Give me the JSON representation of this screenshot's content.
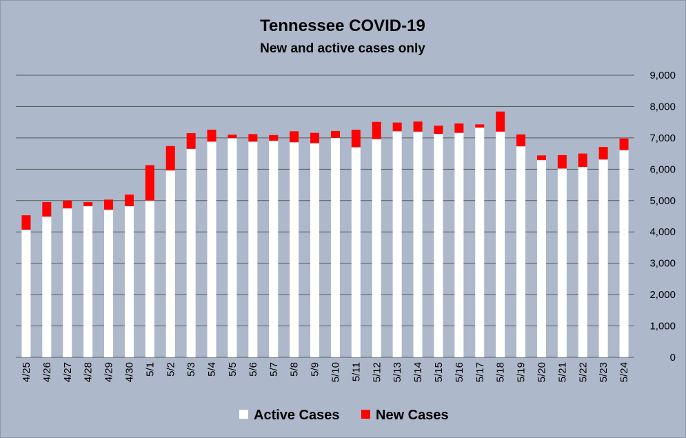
{
  "chart_data": {
    "type": "bar",
    "stacked": true,
    "title": "Tennessee COVID-19",
    "subtitle": "New and active cases only",
    "categories": [
      "4/25",
      "4/26",
      "4/27",
      "4/28",
      "4/29",
      "4/30",
      "5/1",
      "5/2",
      "5/3",
      "5/4",
      "5/5",
      "5/6",
      "5/7",
      "5/8",
      "5/9",
      "5/10",
      "5/11",
      "5/12",
      "5/13",
      "5/14",
      "5/15",
      "5/16",
      "5/17",
      "5/18",
      "5/19",
      "5/20",
      "5/21",
      "5/22",
      "5/23",
      "5/24"
    ],
    "series": [
      {
        "name": "Active Cases",
        "color": "#ffffff",
        "values": [
          4070,
          4490,
          4750,
          4820,
          4710,
          4820,
          5000,
          5960,
          6650,
          6880,
          6990,
          6880,
          6910,
          6860,
          6830,
          7000,
          6700,
          6960,
          7210,
          7200,
          7130,
          7160,
          7330,
          7200,
          6730,
          6290,
          6020,
          6070,
          6310,
          6610
        ]
      },
      {
        "name": "New Cases",
        "color": "#ff0000",
        "values": [
          460,
          460,
          250,
          130,
          320,
          370,
          1130,
          780,
          500,
          380,
          110,
          240,
          180,
          350,
          330,
          220,
          560,
          550,
          280,
          320,
          260,
          300,
          100,
          640,
          380,
          150,
          430,
          430,
          400,
          370
        ]
      }
    ],
    "ylim": [
      0,
      9000
    ],
    "yticks": [
      "0",
      "1,000",
      "2,000",
      "3,000",
      "4,000",
      "5,000",
      "6,000",
      "7,000",
      "8,000",
      "9,000"
    ],
    "ytick_values": [
      0,
      1000,
      2000,
      3000,
      4000,
      5000,
      6000,
      7000,
      8000,
      9000
    ],
    "grid": true,
    "yaxis_position": "right",
    "legend_position": "bottom",
    "gridline_color": "#595959",
    "background_color": "#adb9ca"
  }
}
